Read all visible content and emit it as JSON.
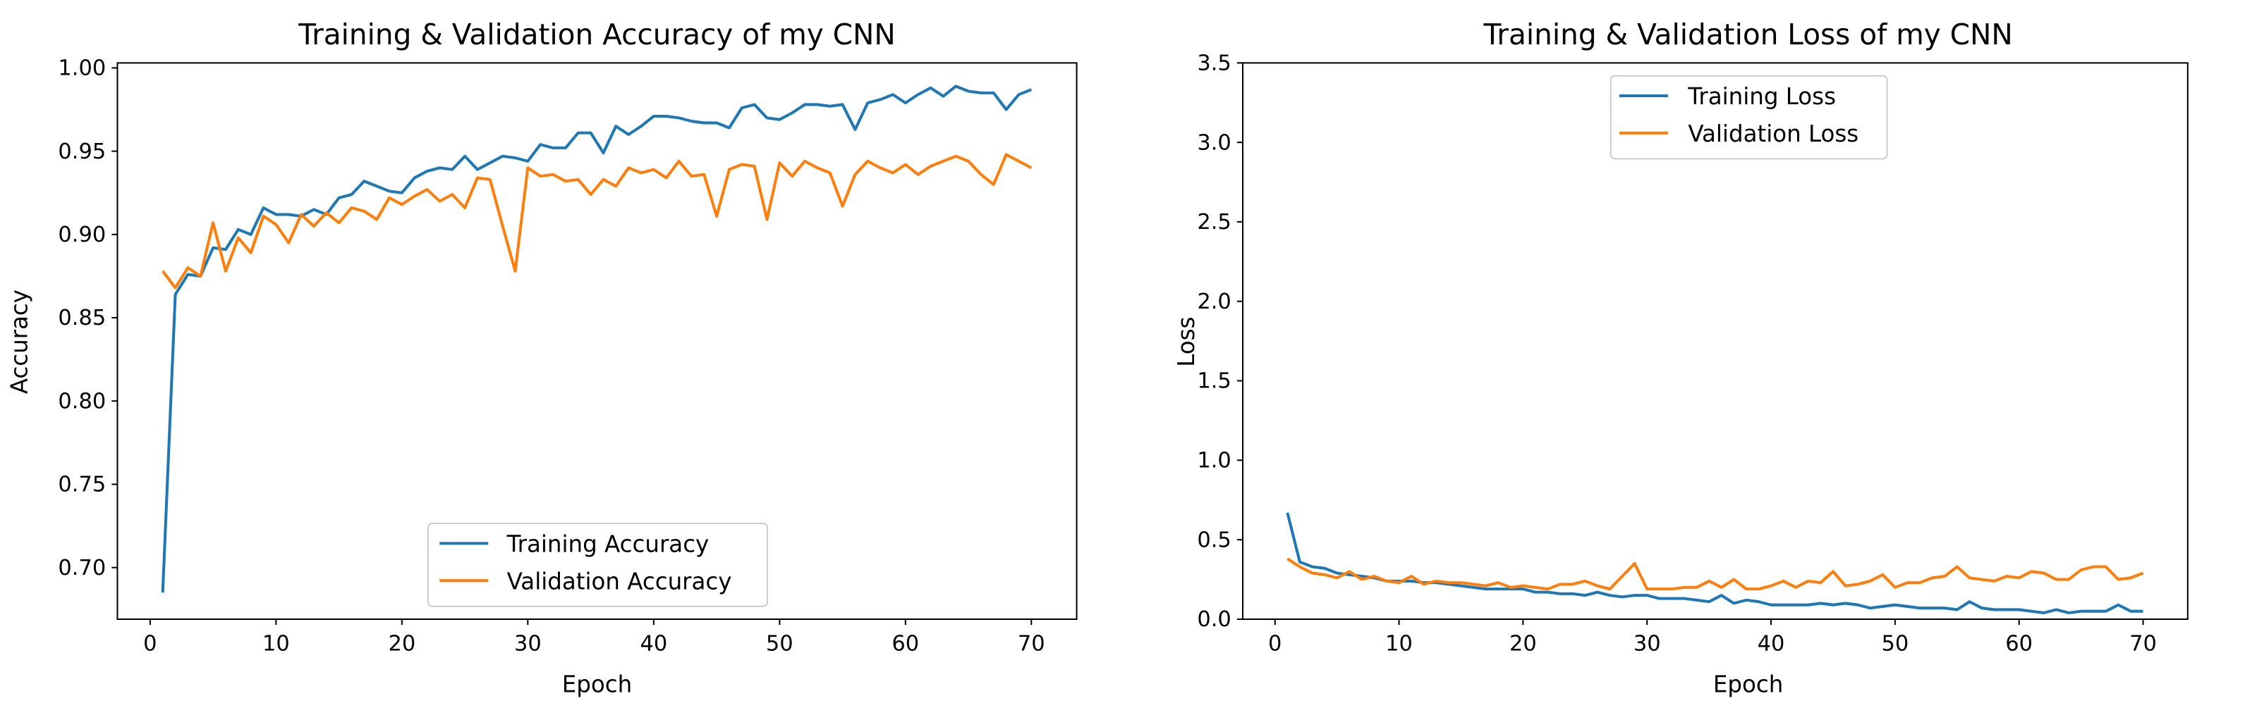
{
  "colors": {
    "training": "#1f77b4",
    "validation": "#ff7f0e",
    "axis": "#000000",
    "legend_border": "#cccccc"
  },
  "chart_data": [
    {
      "type": "line",
      "title": "Training & Validation Accuracy of my CNN",
      "xlabel": "Epoch",
      "ylabel": "Accuracy",
      "xlim": [
        -2.6,
        73.6
      ],
      "ylim": [
        0.669,
        1.003
      ],
      "xticks": [
        0,
        10,
        20,
        30,
        40,
        50,
        60,
        70
      ],
      "xtick_labels": [
        "0",
        "10",
        "20",
        "30",
        "40",
        "50",
        "60",
        "70"
      ],
      "yticks": [
        0.7,
        0.75,
        0.8,
        0.85,
        0.9,
        0.95,
        1.0
      ],
      "ytick_labels": [
        "0.70",
        "0.75",
        "0.80",
        "0.85",
        "0.90",
        "0.95",
        "1.00"
      ],
      "grid": false,
      "legend_position": "lower center",
      "x": [
        1,
        2,
        3,
        4,
        5,
        6,
        7,
        8,
        9,
        10,
        11,
        12,
        13,
        14,
        15,
        16,
        17,
        18,
        19,
        20,
        21,
        22,
        23,
        24,
        25,
        26,
        27,
        28,
        29,
        30,
        31,
        32,
        33,
        34,
        35,
        36,
        37,
        38,
        39,
        40,
        41,
        42,
        43,
        44,
        45,
        46,
        47,
        48,
        49,
        50,
        51,
        52,
        53,
        54,
        55,
        56,
        57,
        58,
        59,
        60,
        61,
        62,
        63,
        64,
        65,
        66,
        67,
        68,
        69,
        70
      ],
      "series": [
        {
          "name": "Training Accuracy",
          "color": "#1f77b4",
          "values": [
            0.685,
            0.864,
            0.876,
            0.875,
            0.892,
            0.891,
            0.903,
            0.9,
            0.916,
            0.912,
            0.912,
            0.911,
            0.915,
            0.912,
            0.922,
            0.924,
            0.932,
            0.929,
            0.926,
            0.925,
            0.934,
            0.938,
            0.94,
            0.939,
            0.947,
            0.939,
            0.943,
            0.947,
            0.946,
            0.944,
            0.954,
            0.952,
            0.952,
            0.961,
            0.961,
            0.949,
            0.965,
            0.96,
            0.965,
            0.971,
            0.971,
            0.97,
            0.968,
            0.967,
            0.967,
            0.964,
            0.976,
            0.978,
            0.97,
            0.969,
            0.973,
            0.978,
            0.978,
            0.977,
            0.978,
            0.963,
            0.979,
            0.981,
            0.984,
            0.979,
            0.984,
            0.988,
            0.983,
            0.989,
            0.986,
            0.985,
            0.985,
            0.975,
            0.984,
            0.987
          ]
        },
        {
          "name": "Validation Accuracy",
          "color": "#ff7f0e",
          "values": [
            0.878,
            0.868,
            0.88,
            0.875,
            0.907,
            0.878,
            0.898,
            0.889,
            0.911,
            0.906,
            0.895,
            0.912,
            0.905,
            0.913,
            0.907,
            0.916,
            0.914,
            0.909,
            0.922,
            0.918,
            0.923,
            0.927,
            0.92,
            0.924,
            0.916,
            0.934,
            0.933,
            0.905,
            0.878,
            0.94,
            0.935,
            0.936,
            0.932,
            0.933,
            0.924,
            0.933,
            0.929,
            0.94,
            0.937,
            0.939,
            0.934,
            0.944,
            0.935,
            0.936,
            0.911,
            0.939,
            0.942,
            0.941,
            0.909,
            0.943,
            0.935,
            0.944,
            0.94,
            0.937,
            0.917,
            0.936,
            0.944,
            0.94,
            0.937,
            0.942,
            0.936,
            0.941,
            0.944,
            0.947,
            0.944,
            0.936,
            0.93,
            0.948,
            0.944,
            0.94
          ]
        }
      ]
    },
    {
      "type": "line",
      "title": "Training & Validation Loss of my CNN",
      "xlabel": "Epoch",
      "ylabel": "Loss",
      "xlim": [
        -2.6,
        73.6
      ],
      "ylim": [
        0.0,
        3.5
      ],
      "xticks": [
        0,
        10,
        20,
        30,
        40,
        50,
        60,
        70
      ],
      "xtick_labels": [
        "0",
        "10",
        "20",
        "30",
        "40",
        "50",
        "60",
        "70"
      ],
      "yticks": [
        0.0,
        0.5,
        1.0,
        1.5,
        2.0,
        2.5,
        3.0,
        3.5
      ],
      "ytick_labels": [
        "0.0",
        "0.5",
        "1.0",
        "1.5",
        "2.0",
        "2.5",
        "3.0",
        "3.5"
      ],
      "grid": false,
      "legend_position": "upper center",
      "x": [
        1,
        2,
        3,
        4,
        5,
        6,
        7,
        8,
        9,
        10,
        11,
        12,
        13,
        14,
        15,
        16,
        17,
        18,
        19,
        20,
        21,
        22,
        23,
        24,
        25,
        26,
        27,
        28,
        29,
        30,
        31,
        32,
        33,
        34,
        35,
        36,
        37,
        38,
        39,
        40,
        41,
        42,
        43,
        44,
        45,
        46,
        47,
        48,
        49,
        50,
        51,
        52,
        53,
        54,
        55,
        56,
        57,
        58,
        59,
        60,
        61,
        62,
        63,
        64,
        65,
        66,
        67,
        68,
        69,
        70
      ],
      "series": [
        {
          "name": "Training Loss",
          "color": "#1f77b4",
          "values": [
            0.67,
            0.36,
            0.33,
            0.32,
            0.29,
            0.28,
            0.27,
            0.26,
            0.24,
            0.24,
            0.24,
            0.23,
            0.23,
            0.22,
            0.21,
            0.2,
            0.19,
            0.19,
            0.19,
            0.19,
            0.17,
            0.17,
            0.16,
            0.16,
            0.15,
            0.17,
            0.15,
            0.14,
            0.15,
            0.15,
            0.13,
            0.13,
            0.13,
            0.12,
            0.11,
            0.15,
            0.1,
            0.12,
            0.11,
            0.09,
            0.09,
            0.09,
            0.09,
            0.1,
            0.09,
            0.1,
            0.09,
            0.07,
            0.08,
            0.09,
            0.08,
            0.07,
            0.07,
            0.07,
            0.06,
            0.11,
            0.07,
            0.06,
            0.06,
            0.06,
            0.05,
            0.04,
            0.06,
            0.04,
            0.05,
            0.05,
            0.05,
            0.09,
            0.05,
            0.05
          ]
        },
        {
          "name": "Validation Loss",
          "color": "#ff7f0e",
          "values": [
            0.38,
            0.33,
            0.29,
            0.28,
            0.26,
            0.3,
            0.25,
            0.27,
            0.24,
            0.23,
            0.27,
            0.22,
            0.24,
            0.23,
            0.23,
            0.22,
            0.21,
            0.23,
            0.2,
            0.21,
            0.2,
            0.19,
            0.22,
            0.22,
            0.24,
            0.21,
            0.19,
            0.27,
            0.35,
            0.19,
            0.19,
            0.19,
            0.2,
            0.2,
            0.24,
            0.2,
            0.25,
            0.19,
            0.19,
            0.21,
            0.24,
            0.2,
            0.24,
            0.23,
            0.3,
            0.21,
            0.22,
            0.24,
            0.28,
            0.2,
            0.23,
            0.23,
            0.26,
            0.27,
            0.33,
            0.26,
            0.25,
            0.24,
            0.27,
            0.26,
            0.3,
            0.29,
            0.25,
            0.25,
            0.31,
            0.33,
            0.33,
            0.25,
            0.26,
            0.29
          ]
        }
      ]
    }
  ]
}
